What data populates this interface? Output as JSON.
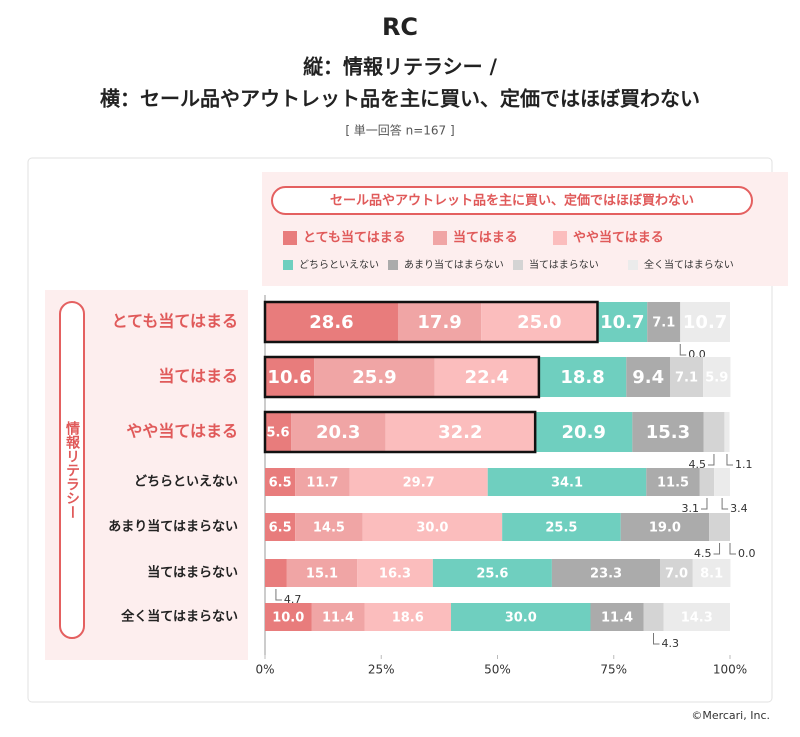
{
  "chart_data": {
    "type": "stacked-bar",
    "logo": "RC",
    "title": "縦：情報リテラシー /",
    "subtitle": "横：セール品やアウトレット品を主に買い、定価ではほぼ買わない",
    "note": "[ 単一回答 n=167 ]",
    "legend_title": "セール品やアウトレット品を主に買い、定価ではほぼ買わない",
    "y_label": "情報リテラシー",
    "credit": "©Mercari, Inc.",
    "categories": [
      "とても当てはまる",
      "当てはまる",
      "やや当てはまる",
      "どちらといえない",
      "あまり当てはまらない",
      "当てはまらない",
      "全く当てはまらない"
    ],
    "series": [
      {
        "name": "とても当てはまる",
        "color": "#e87c7c",
        "values": [
          28.6,
          10.6,
          5.6,
          6.5,
          6.5,
          4.7,
          10.0
        ],
        "value_labels": [
          "28.6",
          "10.6",
          "5.6",
          "6.5",
          "6.5",
          "4.7",
          "10.0"
        ]
      },
      {
        "name": "当てはまる",
        "color": "#f0a5a5",
        "values": [
          17.9,
          25.9,
          20.3,
          11.7,
          14.5,
          15.1,
          11.4
        ],
        "value_labels": [
          "17.9",
          "25.9",
          "20.3",
          "11.7",
          "14.5",
          "15.1",
          "11.4"
        ]
      },
      {
        "name": "やや当てはまる",
        "color": "#fbbdbd",
        "values": [
          25.0,
          22.4,
          32.2,
          29.7,
          30.0,
          16.3,
          18.6
        ],
        "value_labels": [
          "25.0",
          "22.4",
          "32.2",
          "29.7",
          "30.0",
          "16.3",
          "18.6"
        ]
      },
      {
        "name": "どちらといえない",
        "color": "#6fcfbf",
        "values": [
          10.7,
          18.8,
          20.9,
          34.1,
          25.5,
          25.6,
          30.0
        ],
        "value_labels": [
          "10.7",
          "18.8",
          "20.9",
          "34.1",
          "25.5",
          "25.6",
          "30.0"
        ]
      },
      {
        "name": "あまり当てはまらない",
        "color": "#ababab",
        "values": [
          7.1,
          9.4,
          15.3,
          11.5,
          19.0,
          23.3,
          11.4
        ],
        "value_labels": [
          "7.1",
          "9.4",
          "15.3",
          "11.5",
          "19.0",
          "23.3",
          "11.4"
        ]
      },
      {
        "name": "当てはまらない",
        "color": "#d4d4d4",
        "values": [
          0.0,
          7.1,
          4.5,
          3.1,
          4.5,
          7.0,
          4.3
        ],
        "value_labels": [
          "0.0",
          "7.1",
          "4.5",
          "3.1",
          "4.5",
          "7.0",
          "4.3"
        ]
      },
      {
        "name": "全く当てはまらない",
        "color": "#ebebeb",
        "values": [
          10.7,
          5.9,
          1.1,
          3.4,
          0.0,
          8.1,
          14.3
        ],
        "value_labels": [
          "10.7",
          "5.9",
          "1.1",
          "3.4",
          "0.0",
          "8.1",
          "14.3"
        ]
      }
    ],
    "xlim": [
      0,
      100
    ],
    "xticks": [
      {
        "value": 0,
        "label": "0%"
      },
      {
        "value": 25,
        "label": "25%"
      },
      {
        "value": 50,
        "label": "50%"
      },
      {
        "value": 75,
        "label": "75%"
      },
      {
        "value": 100,
        "label": "100%"
      }
    ]
  }
}
